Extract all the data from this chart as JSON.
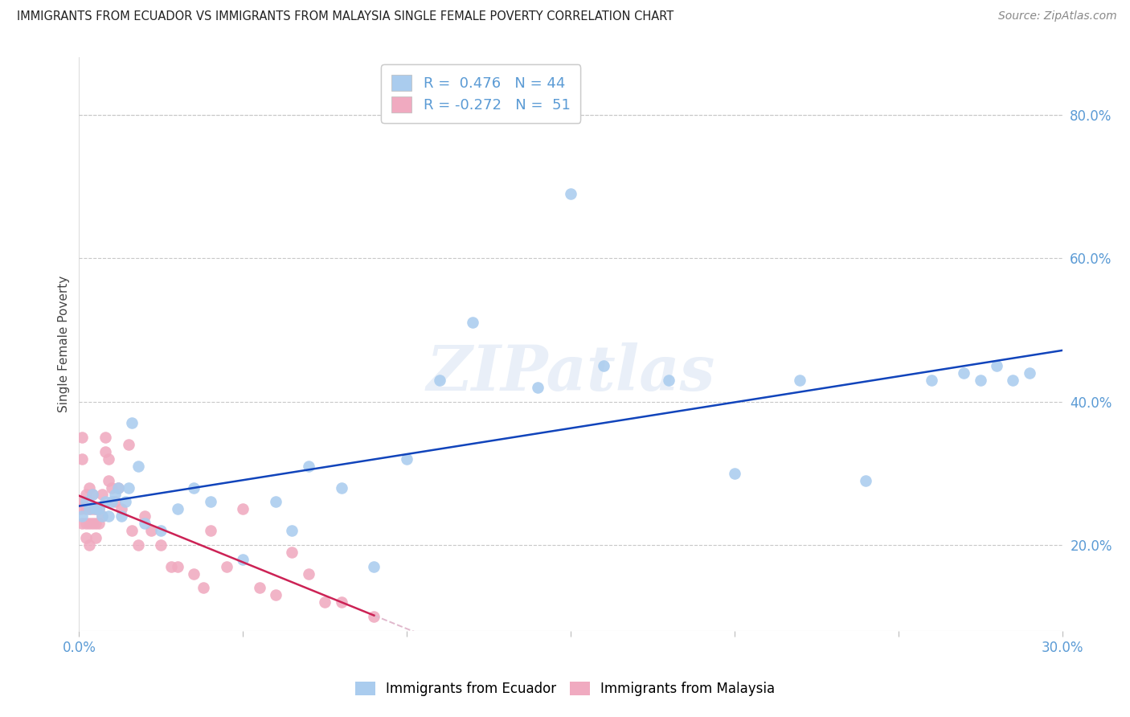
{
  "title": "IMMIGRANTS FROM ECUADOR VS IMMIGRANTS FROM MALAYSIA SINGLE FEMALE POVERTY CORRELATION CHART",
  "source": "Source: ZipAtlas.com",
  "axis_color": "#5b9bd5",
  "ylabel": "Single Female Poverty",
  "xlim": [
    0.0,
    0.3
  ],
  "ylim": [
    0.08,
    0.88
  ],
  "x_ticks": [
    0.0,
    0.05,
    0.1,
    0.15,
    0.2,
    0.25,
    0.3
  ],
  "x_labels_show": [
    true,
    false,
    false,
    false,
    false,
    false,
    true
  ],
  "y_ticks_right": [
    0.2,
    0.4,
    0.6,
    0.8
  ],
  "grid_color": "#c8c8c8",
  "ecuador_color": "#aaccee",
  "malaysia_color": "#f0aac0",
  "ecuador_line_color": "#1144bb",
  "malaysia_line_color": "#cc2255",
  "malaysia_line_dashed_color": "#e0b8cc",
  "legend_ecuador_R": "0.476",
  "legend_ecuador_N": "44",
  "legend_malaysia_R": "-0.272",
  "legend_malaysia_N": "51",
  "watermark": "ZIPatlas",
  "ecuador_x": [
    0.001,
    0.002,
    0.003,
    0.004,
    0.005,
    0.006,
    0.007,
    0.008,
    0.009,
    0.01,
    0.011,
    0.012,
    0.013,
    0.014,
    0.015,
    0.016,
    0.018,
    0.02,
    0.025,
    0.03,
    0.035,
    0.04,
    0.05,
    0.06,
    0.065,
    0.07,
    0.08,
    0.09,
    0.1,
    0.11,
    0.12,
    0.14,
    0.15,
    0.16,
    0.18,
    0.2,
    0.22,
    0.24,
    0.26,
    0.27,
    0.275,
    0.28,
    0.285,
    0.29
  ],
  "ecuador_y": [
    0.24,
    0.26,
    0.25,
    0.27,
    0.25,
    0.25,
    0.24,
    0.26,
    0.24,
    0.26,
    0.27,
    0.28,
    0.24,
    0.26,
    0.28,
    0.37,
    0.31,
    0.23,
    0.22,
    0.25,
    0.28,
    0.26,
    0.18,
    0.26,
    0.22,
    0.31,
    0.28,
    0.17,
    0.32,
    0.43,
    0.51,
    0.42,
    0.69,
    0.45,
    0.43,
    0.3,
    0.43,
    0.29,
    0.43,
    0.44,
    0.43,
    0.45,
    0.43,
    0.44
  ],
  "malaysia_x": [
    0.0005,
    0.001,
    0.001,
    0.001,
    0.001,
    0.002,
    0.002,
    0.002,
    0.002,
    0.003,
    0.003,
    0.003,
    0.003,
    0.004,
    0.004,
    0.004,
    0.005,
    0.005,
    0.005,
    0.006,
    0.006,
    0.007,
    0.007,
    0.008,
    0.008,
    0.009,
    0.009,
    0.01,
    0.011,
    0.012,
    0.013,
    0.015,
    0.016,
    0.018,
    0.02,
    0.022,
    0.025,
    0.028,
    0.03,
    0.035,
    0.038,
    0.04,
    0.045,
    0.05,
    0.055,
    0.06,
    0.065,
    0.07,
    0.075,
    0.08,
    0.09
  ],
  "malaysia_y": [
    0.25,
    0.35,
    0.32,
    0.26,
    0.23,
    0.27,
    0.25,
    0.23,
    0.21,
    0.28,
    0.25,
    0.23,
    0.2,
    0.27,
    0.25,
    0.23,
    0.25,
    0.23,
    0.21,
    0.25,
    0.23,
    0.27,
    0.24,
    0.33,
    0.35,
    0.32,
    0.29,
    0.28,
    0.26,
    0.28,
    0.25,
    0.34,
    0.22,
    0.2,
    0.24,
    0.22,
    0.2,
    0.17,
    0.17,
    0.16,
    0.14,
    0.22,
    0.17,
    0.25,
    0.14,
    0.13,
    0.19,
    0.16,
    0.12,
    0.12,
    0.1
  ]
}
